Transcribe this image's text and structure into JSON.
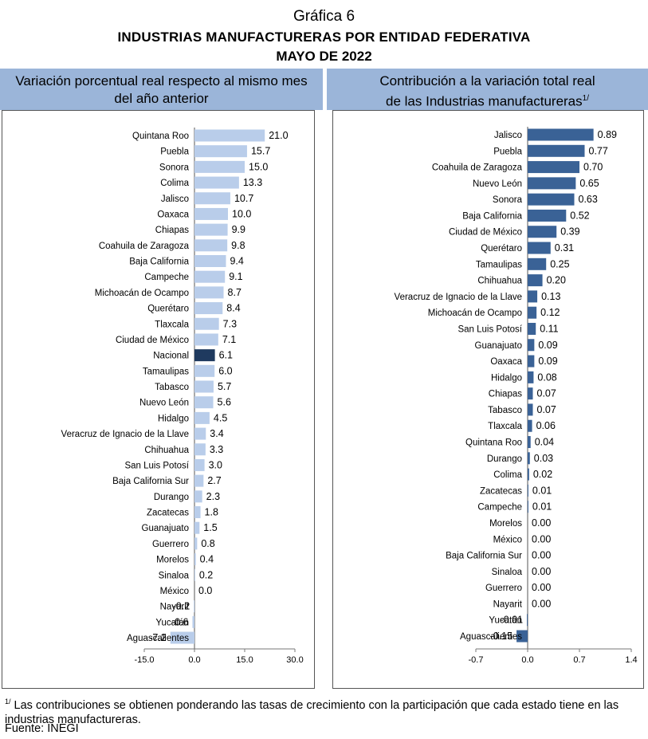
{
  "header": {
    "title": "Gráfica 6",
    "subtitle": "INDUSTRIAS MANUFACTURERAS POR ENTIDAD FEDERATIVA",
    "period": "MAYO DE 2022"
  },
  "left_panel": {
    "heading_line1": "Variación porcentual real respecto al mismo mes",
    "heading_line2": "del año anterior"
  },
  "right_panel": {
    "heading_line1": "Contribución a la variación total real",
    "heading_line2": "de las Industrias manufactureras",
    "heading_sup": "1/"
  },
  "footnote": {
    "marker": "1/",
    "text": "Las contribuciones se obtienen ponderando las tasas de crecimiento con la participación que cada estado tiene en las industrias manufactureras."
  },
  "source": "Fuente: INEGI",
  "colors": {
    "light_bar": "#b9cdea",
    "highlight_bar": "#1f3a5f",
    "dark_bar": "#3a6296",
    "band": "#9bb5d9"
  },
  "chart_data": [
    {
      "type": "bar",
      "orientation": "horizontal",
      "categories": [
        "Quintana Roo",
        "Puebla",
        "Sonora",
        "Colima",
        "Jalisco",
        "Oaxaca",
        "Chiapas",
        "Coahuila de Zaragoza",
        "Baja California",
        "Campeche",
        "Michoacán de Ocampo",
        "Querétaro",
        "Tlaxcala",
        "Ciudad de México",
        "Nacional",
        "Tamaulipas",
        "Tabasco",
        "Nuevo León",
        "Hidalgo",
        "Veracruz de Ignacio de la Llave",
        "Chihuahua",
        "San Luis Potosí",
        "Baja California Sur",
        "Durango",
        "Zacatecas",
        "Guanajuato",
        "Guerrero",
        "Morelos",
        "Sinaloa",
        "México",
        "Nayarit",
        "Yucatán",
        "Aguascalientes"
      ],
      "values": [
        21.0,
        15.7,
        15.0,
        13.3,
        10.7,
        10.0,
        9.9,
        9.8,
        9.4,
        9.1,
        8.7,
        8.4,
        7.3,
        7.1,
        6.1,
        6.0,
        5.7,
        5.6,
        4.5,
        3.4,
        3.3,
        3.0,
        2.7,
        2.3,
        1.8,
        1.5,
        0.8,
        0.4,
        0.2,
        0.0,
        -0.2,
        -0.6,
        -7.2
      ],
      "labels": [
        "21.0",
        "15.7",
        "15.0",
        "13.3",
        "10.7",
        "10.0",
        "9.9",
        "9.8",
        "9.4",
        "9.1",
        "8.7",
        "8.4",
        "7.3",
        "7.1",
        "6.1",
        "6.0",
        "5.7",
        "5.6",
        "4.5",
        "3.4",
        "3.3",
        "3.0",
        "2.7",
        "2.3",
        "1.8",
        "1.5",
        "0.8",
        "0.4",
        "0.2",
        "0.0",
        "-0.2",
        "-0.6",
        "-7.2"
      ],
      "highlight": "Nacional",
      "xlim": [
        -15.0,
        30.0
      ],
      "ticks": [
        -15.0,
        0.0,
        15.0,
        30.0
      ],
      "tick_labels": [
        "-15.0",
        "0.0",
        "15.0",
        "30.0"
      ]
    },
    {
      "type": "bar",
      "orientation": "horizontal",
      "categories": [
        "Jalisco",
        "Puebla",
        "Coahuila de Zaragoza",
        "Nuevo León",
        "Sonora",
        "Baja California",
        "Ciudad de México",
        "Querétaro",
        "Tamaulipas",
        "Chihuahua",
        "Veracruz de Ignacio de la Llave",
        "Michoacán de Ocampo",
        "San Luis Potosí",
        "Guanajuato",
        "Oaxaca",
        "Hidalgo",
        "Chiapas",
        "Tabasco",
        "Tlaxcala",
        "Quintana Roo",
        "Durango",
        "Colima",
        "Zacatecas",
        "Campeche",
        "Morelos",
        "México",
        "Baja California Sur",
        "Sinaloa",
        "Guerrero",
        "Nayarit",
        "Yucatán",
        "Aguascalientes"
      ],
      "values": [
        0.89,
        0.77,
        0.7,
        0.65,
        0.63,
        0.52,
        0.39,
        0.31,
        0.25,
        0.2,
        0.13,
        0.12,
        0.11,
        0.09,
        0.09,
        0.08,
        0.07,
        0.07,
        0.06,
        0.04,
        0.03,
        0.02,
        0.01,
        0.01,
        0.0,
        0.0,
        0.0,
        0.0,
        0.0,
        0.0,
        -0.01,
        -0.15
      ],
      "labels": [
        "0.89",
        "0.77",
        "0.70",
        "0.65",
        "0.63",
        "0.52",
        "0.39",
        "0.31",
        "0.25",
        "0.20",
        "0.13",
        "0.12",
        "0.11",
        "0.09",
        "0.09",
        "0.08",
        "0.07",
        "0.07",
        "0.06",
        "0.04",
        "0.03",
        "0.02",
        "0.01",
        "0.01",
        "0.00",
        "0.00",
        "0.00",
        "0.00",
        "0.00",
        "0.00",
        "-0.01",
        "-0.15"
      ],
      "xlim": [
        -0.7,
        1.4
      ],
      "ticks": [
        -0.7,
        0.0,
        0.7,
        1.4
      ],
      "tick_labels": [
        "-0.7",
        "0.0",
        "0.7",
        "1.4"
      ]
    }
  ]
}
